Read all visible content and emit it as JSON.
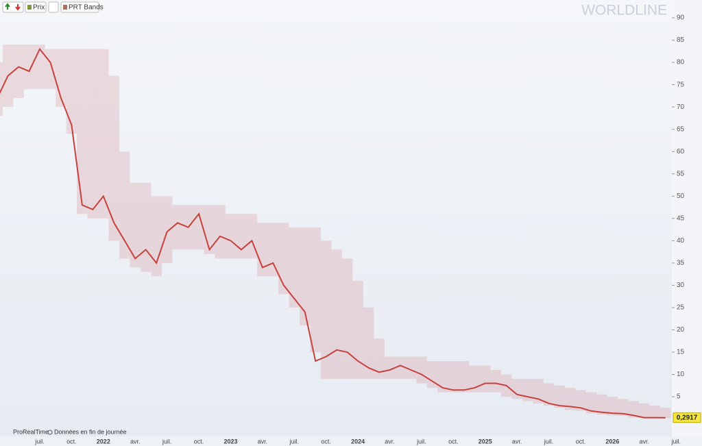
{
  "chart_data": {
    "type": "line",
    "title": "WORLDLINE",
    "toolbar": [
      "Prix",
      "PRT Bands"
    ],
    "footer": [
      "ProRealTime",
      "Données en fin de journée"
    ],
    "categories": [
      null,
      null,
      null,
      null,
      "juil.",
      null,
      null,
      "oct.",
      null,
      null,
      "2022",
      null,
      null,
      "avr.",
      null,
      null,
      "juil.",
      null,
      null,
      "oct.",
      null,
      null,
      "2023",
      null,
      null,
      "avr.",
      null,
      null,
      "juil.",
      null,
      null,
      "oct.",
      null,
      null,
      "2024",
      null,
      null,
      "avr.",
      null,
      null,
      "juil.",
      null,
      null,
      "oct.",
      null,
      null,
      "2025",
      null,
      null,
      "avr.",
      null,
      null,
      "juil.",
      null,
      null,
      "oct.",
      null,
      null,
      "2026",
      null,
      null,
      "avr.",
      null,
      null,
      "juil."
    ],
    "series": [
      {
        "name": "Prix",
        "color": "#c8403c",
        "values": [
          72,
          77,
          79,
          78,
          83,
          80,
          72,
          66,
          48,
          47,
          50,
          44,
          40,
          36,
          38,
          35,
          42,
          44,
          43,
          46,
          38,
          41,
          40,
          38,
          40,
          34,
          35,
          30,
          27,
          24,
          13,
          14,
          15.5,
          15,
          13,
          11.5,
          10.5,
          11,
          12,
          11,
          10,
          8.5,
          7,
          6.5,
          6.5,
          7,
          8,
          8,
          7.5,
          5.5,
          5,
          4.5,
          3.5,
          3,
          2.8,
          2.5,
          1.8,
          1.5,
          1.3,
          1.2,
          0.8,
          0.3,
          0.3,
          0.2917,
          null
        ]
      },
      {
        "name": "PRT Bands",
        "color": "#d9a3aa",
        "upper": [
          80,
          84,
          84,
          84,
          84,
          83,
          83,
          83,
          83,
          83,
          83,
          77,
          60,
          53,
          53,
          50,
          50,
          48,
          48,
          48,
          48,
          48,
          46,
          46,
          46,
          44,
          44,
          44,
          43,
          43,
          43,
          40,
          38,
          36,
          31,
          25,
          18,
          14,
          14,
          14,
          14,
          13,
          13,
          13,
          13,
          12,
          12,
          11,
          10,
          9,
          9,
          9,
          8,
          7.5,
          7,
          6.5,
          6,
          5.5,
          5,
          4.5,
          4,
          3.5,
          3,
          2.5,
          null
        ],
        "lower": [
          68,
          70,
          72,
          74,
          74,
          74,
          70,
          64,
          46,
          45,
          45,
          40,
          36,
          34,
          33,
          32,
          35,
          38,
          38,
          38,
          37,
          36,
          36,
          36,
          36,
          32,
          32,
          28,
          25,
          21,
          15,
          9,
          9,
          9,
          9,
          9,
          9,
          9,
          9,
          9,
          8,
          7,
          6,
          6,
          6,
          6,
          6,
          6,
          5,
          4.5,
          4,
          3.5,
          3,
          2.5,
          2,
          1.8,
          1.3,
          1,
          0.8,
          0.7,
          0.3,
          0.2,
          0.2,
          0.2,
          null
        ]
      }
    ],
    "last_value_label": "0,2917",
    "ylim": [
      0,
      94
    ],
    "yticks": [
      5,
      10,
      15,
      20,
      25,
      30,
      35,
      40,
      45,
      50,
      55,
      60,
      65,
      70,
      75,
      80,
      85,
      90
    ]
  }
}
